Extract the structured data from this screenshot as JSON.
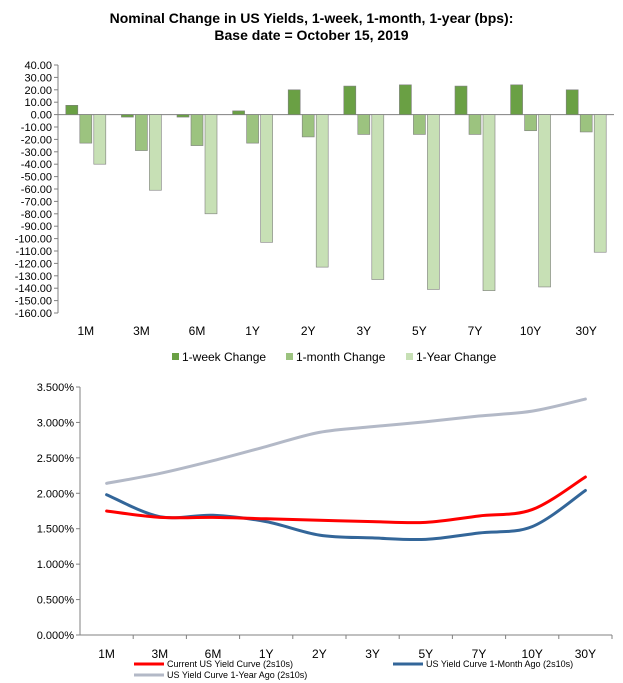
{
  "chart_data": [
    {
      "type": "bar",
      "title": "Nominal Change in US Yields, 1-week, 1-month, 1-year (bps):",
      "subtitle": "Base date = October 15, 2019",
      "categories": [
        "1M",
        "3M",
        "6M",
        "1Y",
        "2Y",
        "3Y",
        "5Y",
        "7Y",
        "10Y",
        "30Y"
      ],
      "ylim": [
        -160,
        40
      ],
      "ytick_step": 10,
      "grid": false,
      "legend_position": "bottom",
      "series": [
        {
          "name": "1-week Change",
          "color": "#6aa044",
          "values": [
            7.5,
            -2,
            -2,
            3,
            20,
            23,
            24,
            23,
            24,
            20
          ]
        },
        {
          "name": "1-month Change",
          "color": "#9cc37f",
          "values": [
            -23,
            -29,
            -25,
            -23,
            -18,
            -16,
            -16,
            -16,
            -13,
            -14
          ]
        },
        {
          "name": "1-Year Change",
          "color": "#c7e0b5",
          "values": [
            -40,
            -61,
            -80,
            -103,
            -123,
            -133,
            -141,
            -142,
            -139,
            -111
          ]
        }
      ]
    },
    {
      "type": "line",
      "categories": [
        "1M",
        "3M",
        "6M",
        "1Y",
        "2Y",
        "3Y",
        "5Y",
        "7Y",
        "10Y",
        "30Y"
      ],
      "ylim": [
        0,
        3.5
      ],
      "ytick_step": 0.5,
      "y_format": "percent_3dp",
      "grid": false,
      "legend_position": "bottom",
      "series": [
        {
          "name": "Current US Yield Curve (2s10s)",
          "color": "#ff0000",
          "values": [
            1.75,
            1.66,
            1.66,
            1.64,
            1.62,
            1.6,
            1.59,
            1.68,
            1.77,
            2.23
          ]
        },
        {
          "name": "US Yield Curve 1-Month Ago (2s10s)",
          "color": "#336699",
          "values": [
            1.98,
            1.67,
            1.69,
            1.6,
            1.41,
            1.37,
            1.35,
            1.44,
            1.53,
            2.04
          ]
        },
        {
          "name": "US Yield Curve 1-Year Ago (2s10s)",
          "color": "#b3b9c7",
          "values": [
            2.14,
            2.28,
            2.46,
            2.66,
            2.86,
            2.94,
            3.01,
            3.09,
            3.16,
            3.33
          ]
        }
      ]
    }
  ]
}
